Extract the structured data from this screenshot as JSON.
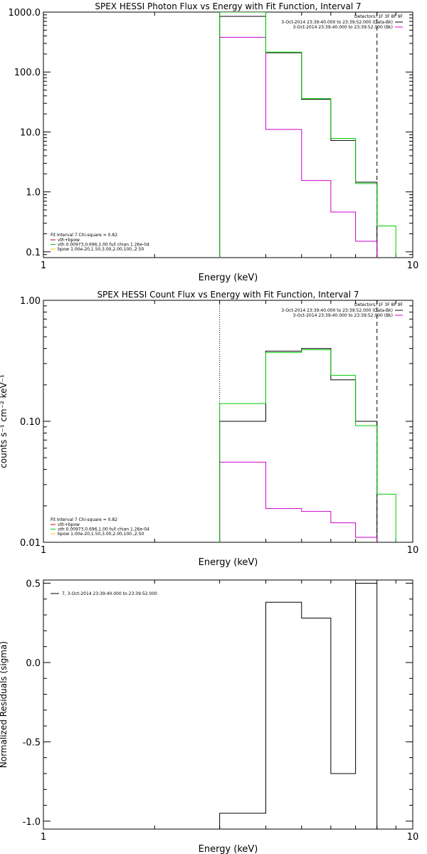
{
  "colors": {
    "data": "#000000",
    "fit": "#00cc00",
    "bk": "#cc00cc",
    "vth": "#dd0000",
    "bpow": "#ffcc00"
  },
  "chart_data": [
    {
      "type": "line",
      "title": "SPEX HESSI Photon Flux vs Energy with Fit Function, Interval 7",
      "xlabel": "Energy (keV)",
      "ylabel": "",
      "xscale": "log",
      "yscale": "log",
      "xlim": [
        1,
        10
      ],
      "ylim": [
        0.08,
        1000
      ],
      "xticks": [
        {
          "v": 1,
          "t": "1"
        },
        {
          "v": 10,
          "t": "10"
        }
      ],
      "yticks": [
        {
          "v": 0.1,
          "t": "0.1"
        },
        {
          "v": 1,
          "t": "1.0"
        },
        {
          "v": 10,
          "t": "10.0"
        },
        {
          "v": 100,
          "t": "100.0"
        },
        {
          "v": 1000,
          "t": "1000.0"
        }
      ],
      "edges": [
        3.0,
        4.0,
        5.0,
        6.0,
        7.0,
        8.0,
        9.0
      ],
      "vlines": [
        {
          "x": 3.0,
          "style": "solid",
          "role": "fit"
        },
        {
          "x": 8.0,
          "style": "dashed",
          "role": "data"
        }
      ],
      "series": [
        {
          "name": "3-Oct-2014 23:39:40.000 to 23:39:52.000 (Data-Bk)",
          "role": "data",
          "values": [
            850,
            210,
            35,
            7.2,
            1.45
          ]
        },
        {
          "name": "3-Oct-2014 23:39:40.000 to 23:39:52.000 (Bk)",
          "role": "bk",
          "values": [
            380,
            11,
            1.55,
            0.46,
            0.15
          ]
        },
        {
          "name": "",
          "role": "fit",
          "values": [
            1000,
            215,
            36,
            7.8,
            1.38,
            0.27
          ]
        }
      ],
      "legend_top": {
        "header": "Detectors: 1F 3F 8F 9F",
        "entries": [
          {
            "text": "3-Oct-2014 23:39:40.000 to 23:39:52.000 (Data-Bk)",
            "role": "data"
          },
          {
            "text": "3-Oct-2014 23:39:40.000 to 23:39:52.000 (Bk)",
            "role": "bk"
          }
        ]
      },
      "legend_bottom": {
        "header": "Fit Interval 7   Chi-square = 0.82",
        "entries": [
          {
            "text": "vth+bpow",
            "role": "vth"
          },
          {
            "text": "vth 0.00973,0.696,1.00  full chian 1.26e-04",
            "role": "fit"
          },
          {
            "text": "bpow 1.00e-20,1.50,3.00,2.00,100.,2.50",
            "role": "bpow"
          }
        ]
      }
    },
    {
      "type": "line",
      "title": "SPEX HESSI Count Flux vs Energy with Fit Function, Interval 7",
      "xlabel": "Energy (keV)",
      "ylabel": "counts s⁻¹ cm⁻² keV⁻¹",
      "xscale": "log",
      "yscale": "log",
      "xlim": [
        1,
        10
      ],
      "ylim": [
        0.01,
        1
      ],
      "xticks": [
        {
          "v": 1,
          "t": "1"
        },
        {
          "v": 10,
          "t": "10"
        }
      ],
      "yticks": [
        {
          "v": 0.01,
          "t": "0.01"
        },
        {
          "v": 0.1,
          "t": "0.10"
        },
        {
          "v": 1,
          "t": "1.00"
        }
      ],
      "edges": [
        3.0,
        4.0,
        5.0,
        6.0,
        7.0,
        8.0,
        9.0
      ],
      "vlines": [
        {
          "x": 3.0,
          "style": "dotted",
          "role": "data"
        },
        {
          "x": 8.0,
          "style": "dashed",
          "role": "data"
        }
      ],
      "series": [
        {
          "name": "3-Oct-2014 23:39:40.000 to 23:39:52.000 (Data-Bk)",
          "role": "data",
          "values": [
            0.1,
            0.38,
            0.4,
            0.22,
            0.1
          ]
        },
        {
          "name": "3-Oct-2014 23:39:40.000 to 23:39:52.000 (Bk)",
          "role": "bk",
          "values": [
            0.046,
            0.019,
            0.018,
            0.0145,
            0.011
          ]
        },
        {
          "name": "",
          "role": "fit",
          "values": [
            0.14,
            0.37,
            0.39,
            0.24,
            0.092,
            0.025
          ]
        }
      ],
      "legend_top": {
        "header": "Detectors: 1F 3F 8F 9F",
        "entries": [
          {
            "text": "3-Oct-2014 23:39:40.000 to 23:39:52.000 (Data-Bk)",
            "role": "data"
          },
          {
            "text": "3-Oct-2014 23:39:40.000 to 23:39:52.000 (Bk)",
            "role": "bk"
          }
        ]
      },
      "legend_bottom": {
        "header": "Fit Interval 7   Chi-square = 0.82",
        "entries": [
          {
            "text": "vth+bpow",
            "role": "vth"
          },
          {
            "text": "vth 0.00973,0.696,1.00  full chian 1.26e-04",
            "role": "fit"
          },
          {
            "text": "bpow 1.00e-20,1.50,3.00,2.00,100.,2.50",
            "role": "bpow"
          }
        ]
      }
    },
    {
      "type": "line",
      "title": "",
      "xlabel": "Energy (keV)",
      "ylabel": "Normalized Residuals (sigma)",
      "xscale": "log",
      "yscale": "linear",
      "xlim": [
        1,
        10
      ],
      "ylim": [
        -1.05,
        0.52
      ],
      "xticks": [
        {
          "v": 1,
          "t": "1"
        },
        {
          "v": 10,
          "t": "10"
        }
      ],
      "yticks": [
        {
          "v": -1.0,
          "t": "-1.0"
        },
        {
          "v": -0.5,
          "t": "-0.5"
        },
        {
          "v": 0.0,
          "t": "0.0"
        },
        {
          "v": 0.5,
          "t": "0.5"
        }
      ],
      "edges": [
        3.0,
        4.0,
        5.0,
        6.0,
        7.0,
        8.0
      ],
      "series": [
        {
          "name": "7,  3-Oct-2014 23:39:40.000 to 23:39:52.000",
          "role": "data",
          "values": [
            -0.95,
            0.38,
            0.28,
            -0.7,
            0.5
          ]
        }
      ],
      "legend_top_left": {
        "text": "7,  3-Oct-2014 23:39:40.000 to 23:39:52.000",
        "role": "data"
      }
    }
  ]
}
